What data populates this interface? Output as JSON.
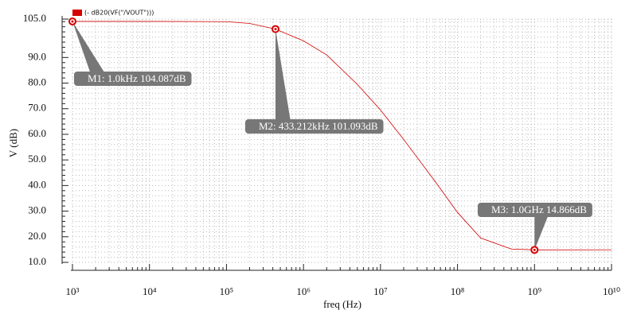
{
  "chart_data": {
    "type": "line",
    "x_label": "freq (Hz)",
    "y_label": "V (dB)",
    "x": [
      1000,
      10000,
      100000,
      200000,
      433212,
      1000000,
      2000000,
      5000000,
      10000000,
      20000000,
      50000000,
      100000000,
      200000000,
      500000000,
      1000000000,
      10000000000
    ],
    "series": [
      {
        "name": "(- dB20(VF(\"/VOUT\")))",
        "color": "#d40000",
        "values": [
          104.087,
          104.087,
          104.0,
          103.3,
          101.093,
          96.5,
          91.0,
          79.5,
          69.5,
          58.0,
          42.0,
          29.5,
          19.5,
          15.2,
          14.866,
          14.9
        ]
      }
    ],
    "xscale": "log",
    "xlim": [
      1000,
      10000000000
    ],
    "xticks": [
      {
        "value": 1000,
        "label": "10³"
      },
      {
        "value": 10000,
        "label": "10⁴"
      },
      {
        "value": 100000,
        "label": "10⁵"
      },
      {
        "value": 1000000,
        "label": "10⁶"
      },
      {
        "value": 10000000,
        "label": "10⁷"
      },
      {
        "value": 100000000,
        "label": "10⁸"
      },
      {
        "value": 1000000000,
        "label": "10⁹"
      },
      {
        "value": 10000000000,
        "label": "10¹⁰"
      }
    ],
    "ylim": [
      10,
      105
    ],
    "yticks": [
      {
        "value": 10,
        "label": "10.0"
      },
      {
        "value": 20,
        "label": "20.0"
      },
      {
        "value": 30,
        "label": "30.0"
      },
      {
        "value": 40,
        "label": "40.0"
      },
      {
        "value": 50,
        "label": "50.0"
      },
      {
        "value": 60,
        "label": "60.0"
      },
      {
        "value": 70,
        "label": "70.0"
      },
      {
        "value": 80,
        "label": "80.0"
      },
      {
        "value": 90,
        "label": "90.0"
      },
      {
        "value": 105,
        "label": "105.0"
      }
    ],
    "grid": true,
    "minor_ticks": true,
    "markers": [
      {
        "x": 1000,
        "y": 104.087,
        "label": "M1: 1.0kHz 104.087dB"
      },
      {
        "x": 433212,
        "y": 101.093,
        "label": "M2: 433.212kHz 101.093dB"
      },
      {
        "x": 1000000000,
        "y": 14.866,
        "label": "M3: 1.0GHz 14.866dB"
      }
    ]
  }
}
